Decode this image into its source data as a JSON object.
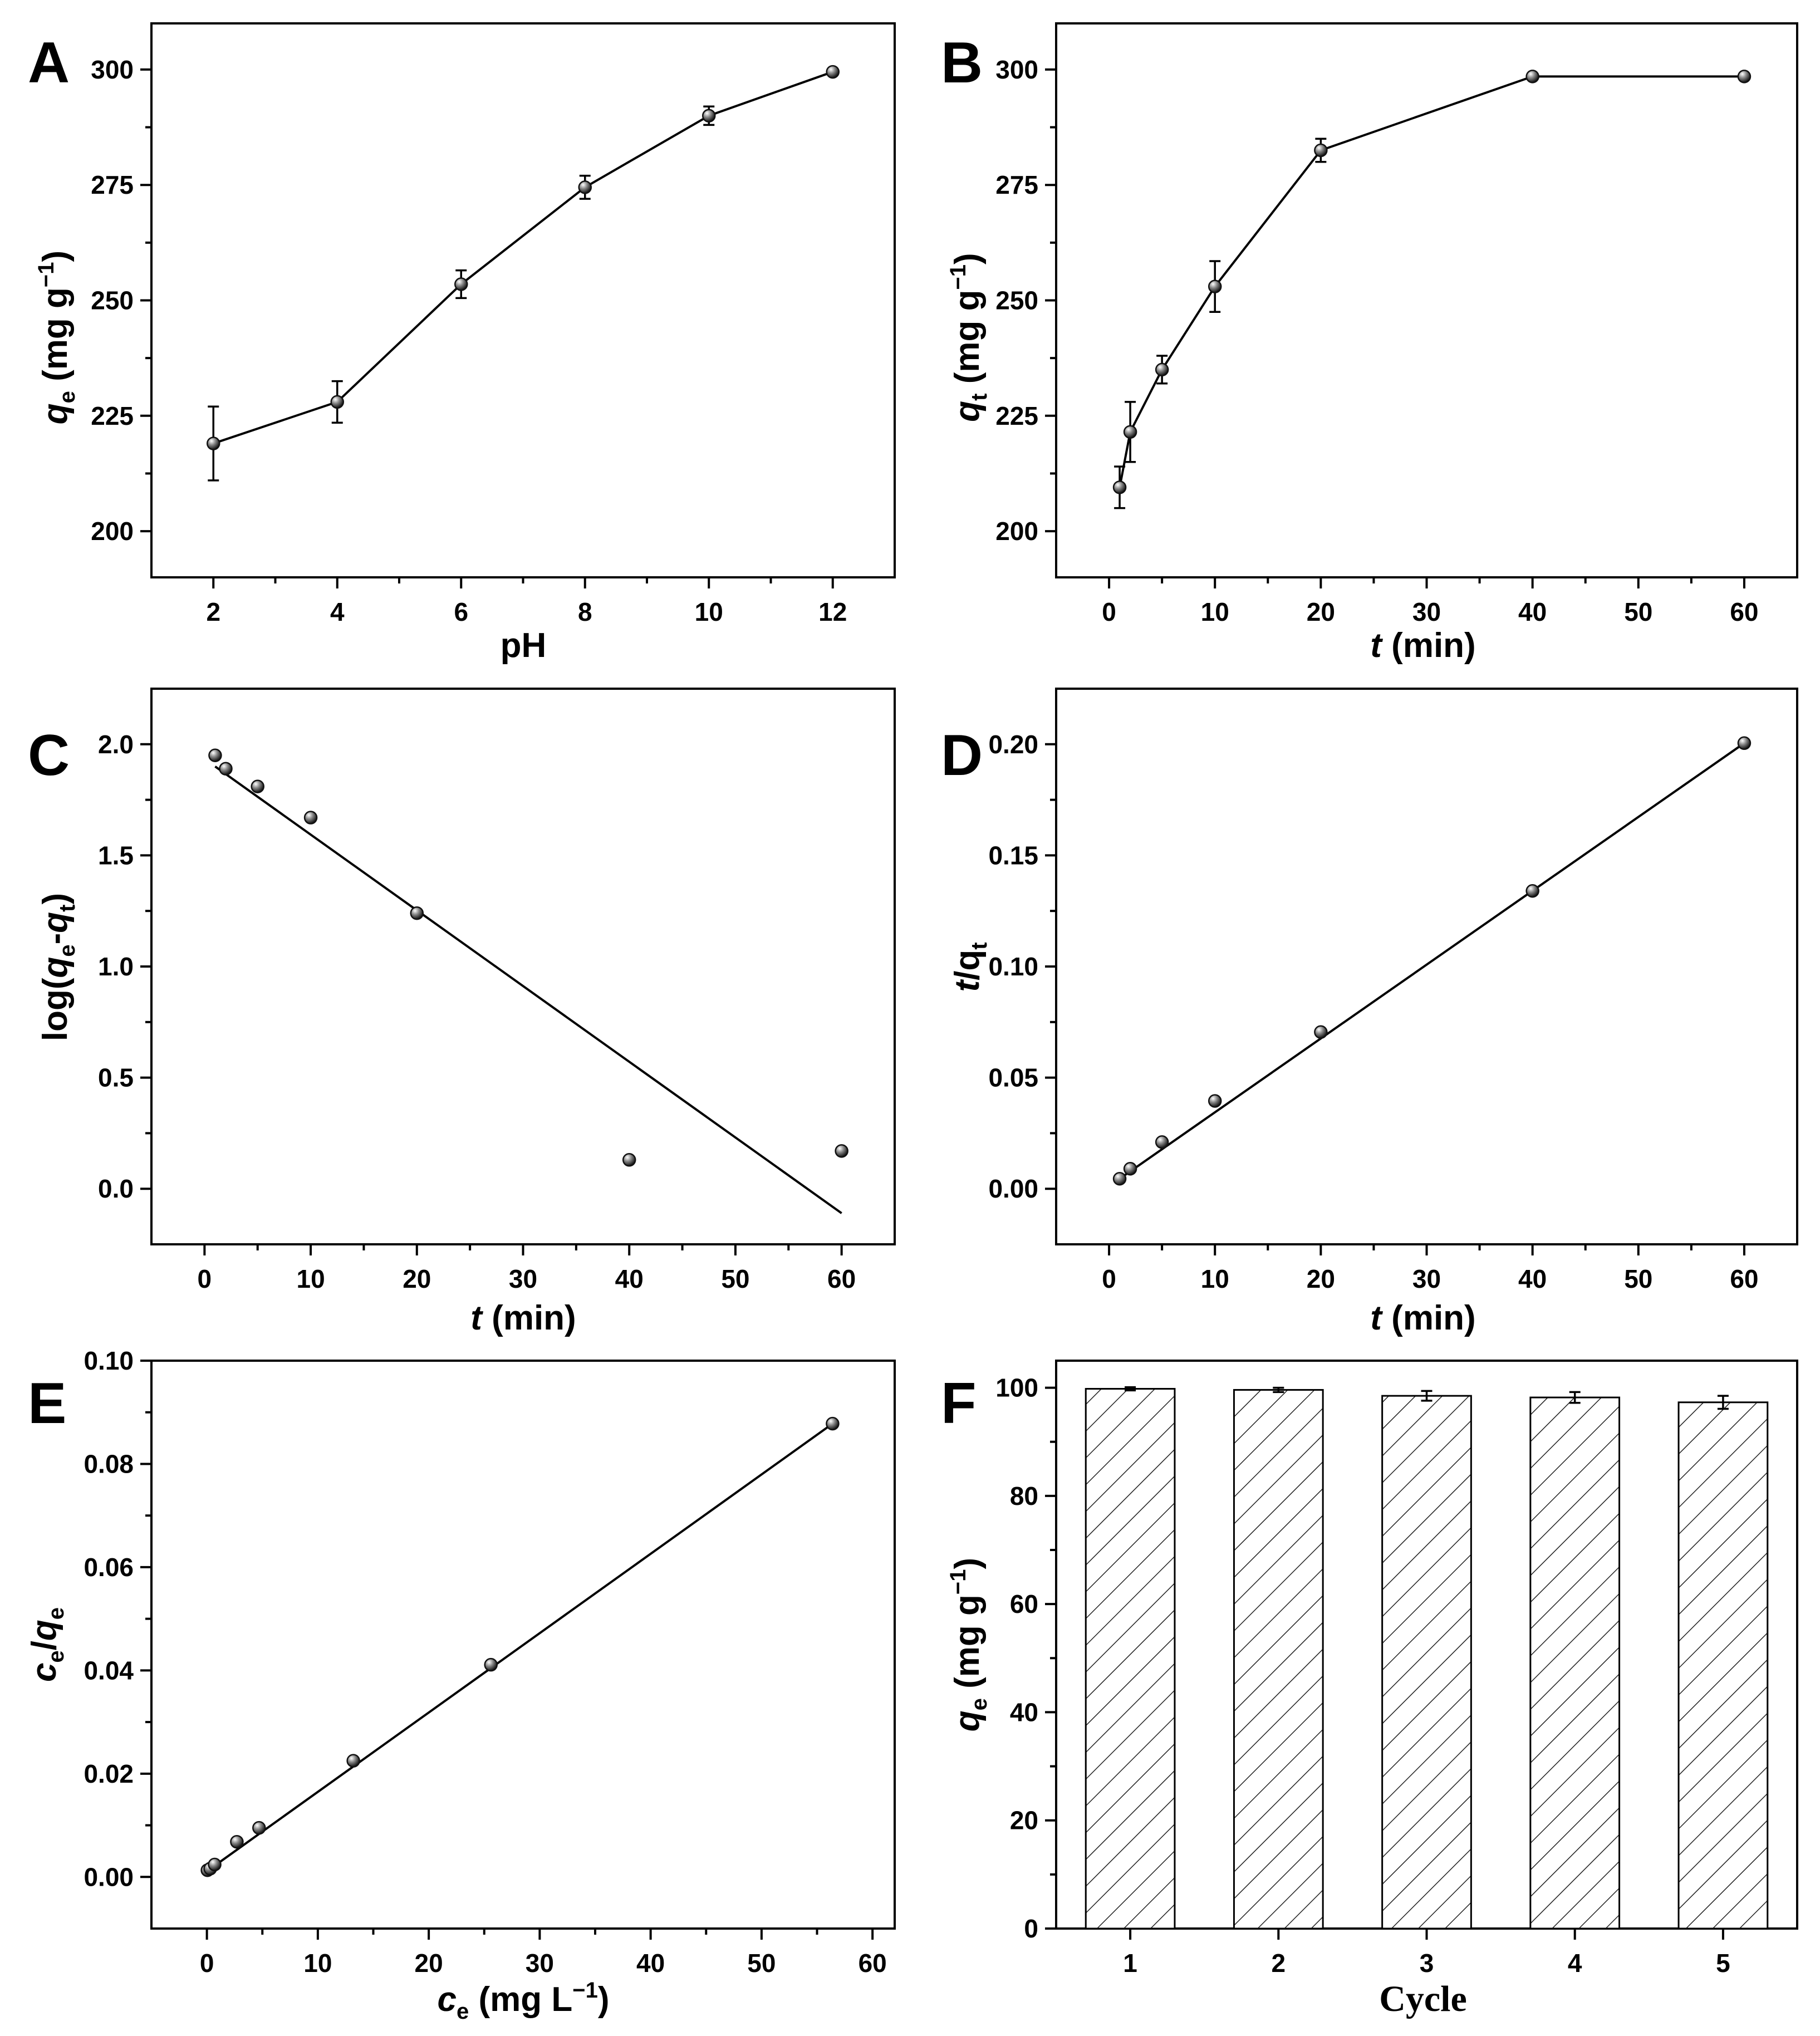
{
  "figure": {
    "panels": [
      "A",
      "B",
      "C",
      "D",
      "E",
      "F"
    ]
  },
  "chart_data": [
    {
      "id": "A",
      "type": "line",
      "x": [
        2,
        4,
        6,
        8,
        10,
        12
      ],
      "y": [
        219,
        228,
        253.5,
        274.5,
        290,
        299.5
      ],
      "yerr": [
        8,
        4.5,
        3,
        2.5,
        2,
        0.5
      ],
      "xlim": [
        1,
        13
      ],
      "ylim": [
        190,
        310
      ],
      "xticks": [
        2,
        4,
        6,
        8,
        10,
        12
      ],
      "yticks": [
        200,
        225,
        250,
        275,
        300
      ],
      "xtick_labels": [
        "2",
        "4",
        "6",
        "8",
        "10",
        "12"
      ],
      "ytick_labels": [
        "200",
        "225",
        "250",
        "275",
        "300"
      ],
      "xlabel": "pH",
      "ylabel_main": "q",
      "ylabel_sub": "e",
      "ylabel_rest": " (mg g",
      "ylabel_sup": "−1",
      "ylabel_close": ")"
    },
    {
      "id": "B",
      "type": "line",
      "x": [
        1,
        2,
        5,
        10,
        20,
        40,
        60
      ],
      "y": [
        209.5,
        221.5,
        235,
        253,
        282.5,
        298.5,
        298.5
      ],
      "yerr": [
        4.5,
        6.5,
        3,
        5.5,
        2.5,
        0.5,
        0.5
      ],
      "xlim": [
        -5,
        65
      ],
      "ylim": [
        190,
        310
      ],
      "xticks": [
        0,
        10,
        20,
        30,
        40,
        50,
        60
      ],
      "yticks": [
        200,
        225,
        250,
        275,
        300
      ],
      "xtick_labels": [
        "0",
        "10",
        "20",
        "30",
        "40",
        "50",
        "60"
      ],
      "ytick_labels": [
        "200",
        "225",
        "250",
        "275",
        "300"
      ],
      "xlabel_main": "t",
      "xlabel_rest": " (min)",
      "ylabel_main": "q",
      "ylabel_sub": "t",
      "ylabel_rest": " (mg g",
      "ylabel_sup": "−1",
      "ylabel_close": ")"
    },
    {
      "id": "C",
      "type": "scatter",
      "x": [
        1,
        2,
        5,
        10,
        20,
        40,
        60
      ],
      "y": [
        1.95,
        1.89,
        1.81,
        1.67,
        1.24,
        0.13,
        0.17
      ],
      "fit": {
        "x": [
          1,
          60
        ],
        "y": [
          1.9,
          -0.11
        ]
      },
      "xlim": [
        -5,
        65
      ],
      "ylim": [
        -0.25,
        2.25
      ],
      "xticks": [
        0,
        10,
        20,
        30,
        40,
        50,
        60
      ],
      "yticks": [
        0.0,
        0.5,
        1.0,
        1.5,
        2.0
      ],
      "xtick_labels": [
        "0",
        "10",
        "20",
        "30",
        "40",
        "50",
        "60"
      ],
      "ytick_labels": [
        "0.0",
        "0.5",
        "1.0",
        "1.5",
        "2.0"
      ],
      "xlabel_main": "t",
      "xlabel_rest": " (min)",
      "ylabel_a": "log(",
      "ylabel_q1": "q",
      "ylabel_s1": "e",
      "ylabel_dash": "-",
      "ylabel_q2": "q",
      "ylabel_s2": "t",
      "ylabel_close": ")"
    },
    {
      "id": "D",
      "type": "scatter",
      "x": [
        1,
        2,
        5,
        10,
        20,
        40,
        60
      ],
      "y": [
        0.0045,
        0.009,
        0.021,
        0.0395,
        0.0705,
        0.134,
        0.2005
      ],
      "fit": {
        "x": [
          1,
          60
        ],
        "y": [
          0.0045,
          0.2005
        ]
      },
      "xlim": [
        -5,
        65
      ],
      "ylim": [
        -0.025,
        0.225
      ],
      "xticks": [
        0,
        10,
        20,
        30,
        40,
        50,
        60
      ],
      "yticks": [
        0.0,
        0.05,
        0.1,
        0.15,
        0.2
      ],
      "xtick_labels": [
        "0",
        "10",
        "20",
        "30",
        "40",
        "50",
        "60"
      ],
      "ytick_labels": [
        "0.00",
        "0.05",
        "0.10",
        "0.15",
        "0.20"
      ],
      "xlabel_main": "t",
      "xlabel_rest": " (min)",
      "ylabel_main": "t",
      "ylabel_rest": "/q",
      "ylabel_sub": "t"
    },
    {
      "id": "E",
      "type": "scatter",
      "x": [
        0.05,
        0.3,
        0.7,
        2.7,
        4.7,
        13.2,
        25.6,
        56.4
      ],
      "y": [
        0.0013,
        0.0016,
        0.0024,
        0.0068,
        0.0095,
        0.0225,
        0.0411,
        0.0878
      ],
      "fit": {
        "x": [
          0,
          56.4
        ],
        "y": [
          0.0011,
          0.0878
        ]
      },
      "xlim": [
        -5,
        62
      ],
      "ylim": [
        -0.01,
        0.1
      ],
      "xticks": [
        0,
        10,
        20,
        30,
        40,
        50,
        60
      ],
      "yticks": [
        0.0,
        0.02,
        0.04,
        0.06,
        0.08,
        0.1
      ],
      "xtick_labels": [
        "0",
        "10",
        "20",
        "30",
        "40",
        "50",
        "60"
      ],
      "ytick_labels": [
        "0.00",
        "0.02",
        "0.04",
        "0.06",
        "0.08",
        "0.10"
      ],
      "xlabel_main": "c",
      "xlabel_sub": "e",
      "xlabel_rest": " (mg L",
      "xlabel_sup": "−1",
      "xlabel_close": ")",
      "ylabel_c": "c",
      "ylabel_s1": "e",
      "ylabel_slash": "/",
      "ylabel_q": "q",
      "ylabel_s2": "e"
    },
    {
      "id": "F",
      "type": "bar",
      "categories": [
        "1",
        "2",
        "3",
        "4",
        "5"
      ],
      "x": [
        1,
        2,
        3,
        4,
        5
      ],
      "values": [
        99.8,
        99.6,
        98.5,
        98.2,
        97.3
      ],
      "yerr": [
        0.3,
        0.4,
        0.9,
        1.0,
        1.2
      ],
      "xlim": [
        0.5,
        5.5
      ],
      "ylim": [
        0,
        105
      ],
      "xticks": [
        1,
        2,
        3,
        4,
        5
      ],
      "yticks": [
        0,
        20,
        40,
        60,
        80,
        100
      ],
      "xtick_labels": [
        "1",
        "2",
        "3",
        "4",
        "5"
      ],
      "ytick_labels": [
        "0",
        "20",
        "40",
        "60",
        "80",
        "100"
      ],
      "xlabel": "Cycle",
      "ylabel_main": "q",
      "ylabel_sub": "e",
      "ylabel_rest": " (mg g",
      "ylabel_sup": "−1",
      "ylabel_close": ")"
    }
  ]
}
